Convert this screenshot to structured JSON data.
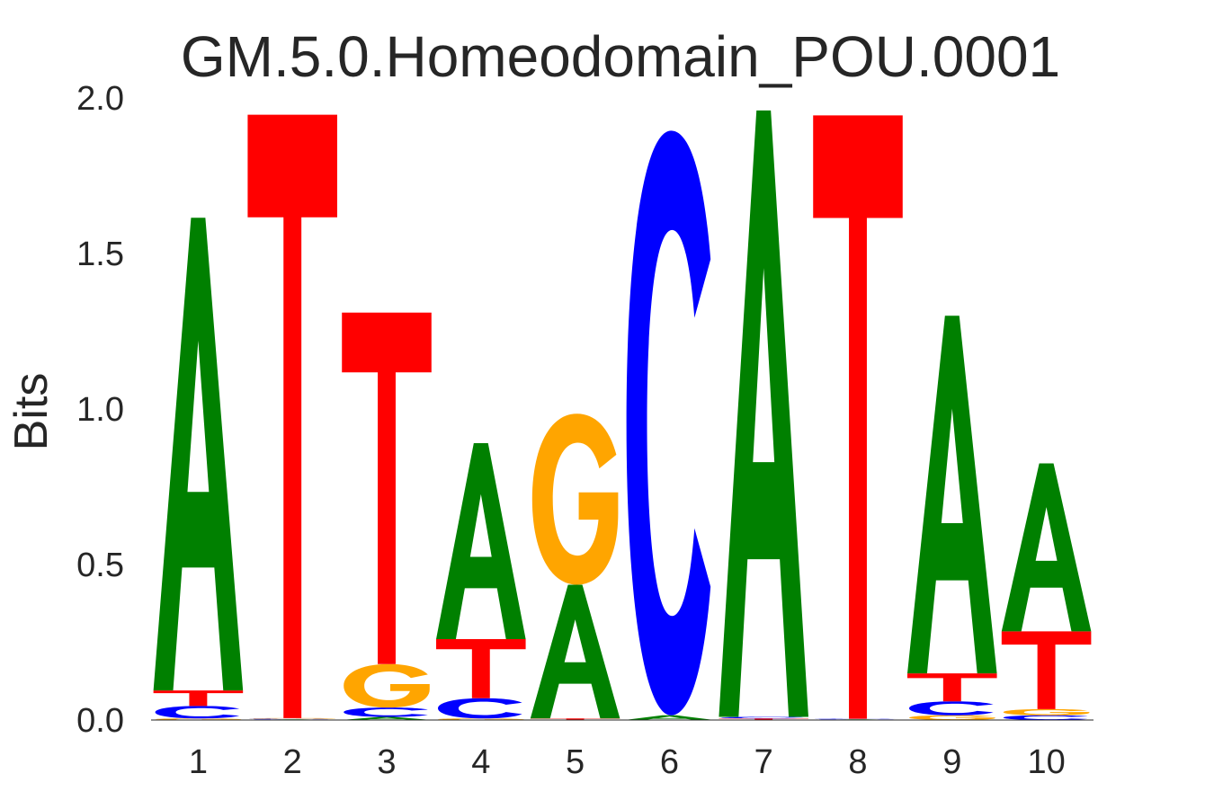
{
  "chart_data": {
    "type": "sequence-logo",
    "title": "GM.5.0.Homeodomain_POU.0001",
    "ylabel": "Bits",
    "xlabel": "",
    "ylim": [
      0,
      2
    ],
    "y_ticks": [
      "0.0",
      "0.5",
      "1.0",
      "1.5",
      "2.0"
    ],
    "grid": false,
    "colors": {
      "A": "#008000",
      "C": "#0000ff",
      "G": "#ffa500",
      "T": "#ff0000"
    },
    "positions": [
      {
        "label": "1",
        "letters": [
          {
            "base": "G",
            "bits": 0.005
          },
          {
            "base": "C",
            "bits": 0.04
          },
          {
            "base": "T",
            "bits": 0.05
          },
          {
            "base": "A",
            "bits": 1.52
          }
        ]
      },
      {
        "label": "2",
        "letters": [
          {
            "base": "A",
            "bits": 0.002
          },
          {
            "base": "C",
            "bits": 0.002
          },
          {
            "base": "G",
            "bits": 0.002
          },
          {
            "base": "T",
            "bits": 1.94
          }
        ]
      },
      {
        "label": "3",
        "letters": [
          {
            "base": "A",
            "bits": 0.01
          },
          {
            "base": "C",
            "bits": 0.03
          },
          {
            "base": "G",
            "bits": 0.14
          },
          {
            "base": "T",
            "bits": 1.13
          }
        ]
      },
      {
        "label": "4",
        "letters": [
          {
            "base": "G",
            "bits": 0.005
          },
          {
            "base": "C",
            "bits": 0.065
          },
          {
            "base": "T",
            "bits": 0.19
          },
          {
            "base": "A",
            "bits": 0.63
          }
        ]
      },
      {
        "label": "5",
        "letters": [
          {
            "base": "T",
            "bits": 0.005
          },
          {
            "base": "A",
            "bits": 0.43
          },
          {
            "base": "G",
            "bits": 0.55
          }
        ]
      },
      {
        "label": "6",
        "letters": [
          {
            "base": "A",
            "bits": 0.015
          },
          {
            "base": "C",
            "bits": 1.88
          }
        ]
      },
      {
        "label": "7",
        "letters": [
          {
            "base": "T",
            "bits": 0.005
          },
          {
            "base": "C",
            "bits": 0.005
          },
          {
            "base": "A",
            "bits": 1.95
          }
        ]
      },
      {
        "label": "8",
        "letters": [
          {
            "base": "A",
            "bits": 0.002
          },
          {
            "base": "C",
            "bits": 0.002
          },
          {
            "base": "T",
            "bits": 1.94
          }
        ]
      },
      {
        "label": "9",
        "letters": [
          {
            "base": "G",
            "bits": 0.015
          },
          {
            "base": "C",
            "bits": 0.045
          },
          {
            "base": "T",
            "bits": 0.09
          },
          {
            "base": "A",
            "bits": 1.15
          }
        ]
      },
      {
        "label": "10",
        "letters": [
          {
            "base": "C",
            "bits": 0.015
          },
          {
            "base": "G",
            "bits": 0.02
          },
          {
            "base": "T",
            "bits": 0.25
          },
          {
            "base": "A",
            "bits": 0.54
          }
        ]
      }
    ]
  }
}
